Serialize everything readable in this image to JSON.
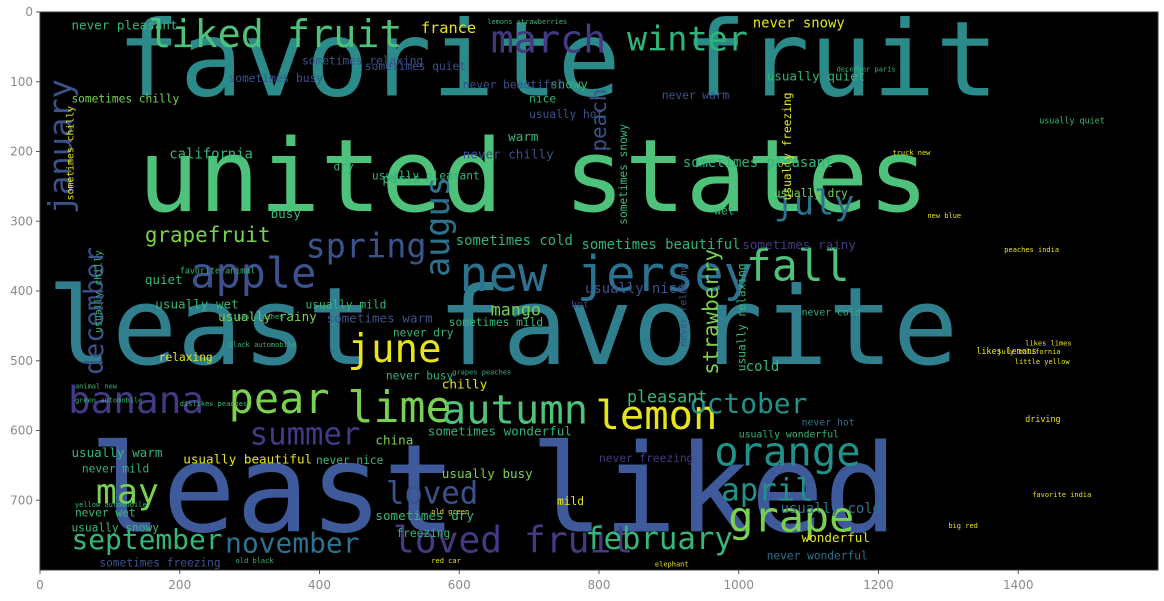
{
  "chart_data": {
    "type": "wordcloud",
    "title": "",
    "xlabel": "",
    "ylabel": "",
    "xlim": [
      0,
      1600
    ],
    "ylim": [
      800,
      0
    ],
    "x_ticks": [
      "0",
      "200",
      "400",
      "600",
      "800",
      "1000",
      "1200",
      "1400"
    ],
    "y_ticks": [
      "0",
      "100",
      "200",
      "300",
      "400",
      "500",
      "600",
      "700"
    ],
    "grid": false,
    "background": "#000000",
    "words": [
      {
        "text": "favorite fruit",
        "x": 110,
        "y": 120,
        "size": 150,
        "color": "#2b8a8a"
      },
      {
        "text": "united states",
        "x": 140,
        "y": 285,
        "size": 145,
        "color": "#4ec27a"
      },
      {
        "text": "least favorite",
        "x": 10,
        "y": 505,
        "size": 155,
        "color": "#2f7f8e"
      },
      {
        "text": "least liked",
        "x": 70,
        "y": 745,
        "size": 175,
        "color": "#3f5a9a"
      },
      {
        "text": "liked fruit",
        "x": 155,
        "y": 50,
        "size": 55,
        "color": "#4ec27a"
      },
      {
        "text": "march",
        "x": 645,
        "y": 58,
        "size": 55,
        "color": "#443983"
      },
      {
        "text": "winter",
        "x": 840,
        "y": 55,
        "size": 48,
        "color": "#2fb37c"
      },
      {
        "text": "january",
        "x": 45,
        "y": 290,
        "size": 46,
        "color": "#3b528b",
        "rotate": -90
      },
      {
        "text": "december",
        "x": 90,
        "y": 520,
        "size": 38,
        "color": "#3b528b",
        "rotate": -90
      },
      {
        "text": "apple",
        "x": 215,
        "y": 395,
        "size": 60,
        "color": "#3b528b"
      },
      {
        "text": "spring",
        "x": 380,
        "y": 352,
        "size": 48,
        "color": "#3b528b"
      },
      {
        "text": "augus",
        "x": 585,
        "y": 380,
        "size": 48,
        "color": "#2c728e",
        "rotate": -90
      },
      {
        "text": "new jersey",
        "x": 600,
        "y": 400,
        "size": 70,
        "color": "#2c728e"
      },
      {
        "text": "july",
        "x": 1050,
        "y": 290,
        "size": 48,
        "color": "#2c728e"
      },
      {
        "text": "fall",
        "x": 1010,
        "y": 385,
        "size": 62,
        "color": "#4ec27a"
      },
      {
        "text": "grapefruit",
        "x": 150,
        "y": 330,
        "size": 30,
        "color": "#7ad151"
      },
      {
        "text": "june",
        "x": 440,
        "y": 502,
        "size": 56,
        "color": "#e7e419"
      },
      {
        "text": "banana",
        "x": 40,
        "y": 575,
        "size": 54,
        "color": "#443983"
      },
      {
        "text": "pear",
        "x": 270,
        "y": 575,
        "size": 60,
        "color": "#7ad151"
      },
      {
        "text": "lime",
        "x": 440,
        "y": 588,
        "size": 62,
        "color": "#7ad151"
      },
      {
        "text": "autumn",
        "x": 575,
        "y": 590,
        "size": 58,
        "color": "#4ec27a"
      },
      {
        "text": "lemon",
        "x": 795,
        "y": 598,
        "size": 58,
        "color": "#e7e419"
      },
      {
        "text": "summer",
        "x": 300,
        "y": 620,
        "size": 44,
        "color": "#443983"
      },
      {
        "text": "october",
        "x": 930,
        "y": 575,
        "size": 40,
        "color": "#21918c"
      },
      {
        "text": "orange",
        "x": 965,
        "y": 650,
        "size": 58,
        "color": "#21918c"
      },
      {
        "text": "grape",
        "x": 985,
        "y": 745,
        "size": 60,
        "color": "#7ad151"
      },
      {
        "text": "april",
        "x": 975,
        "y": 700,
        "size": 44,
        "color": "#21918c"
      },
      {
        "text": "may",
        "x": 80,
        "y": 705,
        "size": 50,
        "color": "#7ad151"
      },
      {
        "text": "loved",
        "x": 495,
        "y": 705,
        "size": 44,
        "color": "#3b528b"
      },
      {
        "text": "loved fruit",
        "x": 505,
        "y": 775,
        "size": 52,
        "color": "#443983"
      },
      {
        "text": "february",
        "x": 780,
        "y": 770,
        "size": 44,
        "color": "#35b779"
      },
      {
        "text": "september",
        "x": 45,
        "y": 770,
        "size": 40,
        "color": "#35b779"
      },
      {
        "text": "november",
        "x": 265,
        "y": 775,
        "size": 40,
        "color": "#2c728e"
      },
      {
        "text": "strawberry",
        "x": 970,
        "y": 520,
        "size": 30,
        "color": "#7ad151",
        "rotate": -90
      },
      {
        "text": "peach",
        "x": 810,
        "y": 200,
        "size": 30,
        "color": "#3b528b",
        "rotate": -90
      },
      {
        "text": "mango",
        "x": 645,
        "y": 435,
        "size": 24,
        "color": "#7ad151"
      },
      {
        "text": "france",
        "x": 545,
        "y": 30,
        "size": 22,
        "color": "#e7e419"
      },
      {
        "text": "never snowy",
        "x": 1020,
        "y": 22,
        "size": 20,
        "color": "#e7e419"
      },
      {
        "text": "never pleasant",
        "x": 45,
        "y": 25,
        "size": 18,
        "color": "#35b779"
      },
      {
        "text": "usually quiet",
        "x": 1040,
        "y": 98,
        "size": 18,
        "color": "#2fb37c"
      },
      {
        "text": "sometimes pleasant",
        "x": 920,
        "y": 222,
        "size": 20,
        "color": "#2fb37c"
      },
      {
        "text": "sometimes cold",
        "x": 595,
        "y": 334,
        "size": 20,
        "color": "#2fb37c"
      },
      {
        "text": "sometimes beautiful",
        "x": 775,
        "y": 340,
        "size": 20,
        "color": "#2fb37c"
      },
      {
        "text": "usually nice",
        "x": 780,
        "y": 403,
        "size": 20,
        "color": "#3b528b"
      },
      {
        "text": "usually rainy",
        "x": 255,
        "y": 443,
        "size": 18,
        "color": "#7ad151"
      },
      {
        "text": "usually wet",
        "x": 165,
        "y": 425,
        "size": 18,
        "color": "#35b779"
      },
      {
        "text": "sometimes warm",
        "x": 410,
        "y": 445,
        "size": 18,
        "color": "#3b528b"
      },
      {
        "text": "sometimes wonderful",
        "x": 555,
        "y": 607,
        "size": 18,
        "color": "#2fb37c"
      },
      {
        "text": "usually beautiful",
        "x": 205,
        "y": 647,
        "size": 18,
        "color": "#e7e419"
      },
      {
        "text": "sometimes rainy",
        "x": 1005,
        "y": 340,
        "size": 18,
        "color": "#443983"
      },
      {
        "text": "usually warm",
        "x": 45,
        "y": 638,
        "size": 18,
        "color": "#35b779"
      },
      {
        "text": "sometimes dry",
        "x": 480,
        "y": 728,
        "size": 18,
        "color": "#35b779"
      },
      {
        "text": "usually busy",
        "x": 575,
        "y": 668,
        "size": 18,
        "color": "#7ad151"
      },
      {
        "text": "pleasant",
        "x": 840,
        "y": 560,
        "size": 24,
        "color": "#35b779"
      },
      {
        "text": "wonderful",
        "x": 1090,
        "y": 760,
        "size": 18,
        "color": "#e7e419"
      },
      {
        "text": "usually cold",
        "x": 1060,
        "y": 718,
        "size": 20,
        "color": "#2c728e"
      },
      {
        "text": "chilly",
        "x": 575,
        "y": 540,
        "size": 18,
        "color": "#e7e419"
      },
      {
        "text": "mild",
        "x": 740,
        "y": 707,
        "size": 16,
        "color": "#e7e419"
      },
      {
        "text": "china",
        "x": 480,
        "y": 620,
        "size": 18,
        "color": "#7ad151"
      },
      {
        "text": "california",
        "x": 185,
        "y": 210,
        "size": 20,
        "color": "#35b779"
      },
      {
        "text": "paris",
        "x": 490,
        "y": 245,
        "size": 18,
        "color": "#35b779"
      },
      {
        "text": "busy",
        "x": 330,
        "y": 295,
        "size": 18,
        "color": "#35b779"
      },
      {
        "text": "quiet",
        "x": 150,
        "y": 390,
        "size": 18,
        "color": "#35b779"
      },
      {
        "text": "snowy",
        "x": 730,
        "y": 110,
        "size": 18,
        "color": "#35b779"
      },
      {
        "text": "warm",
        "x": 670,
        "y": 185,
        "size": 18,
        "color": "#35b779"
      },
      {
        "text": "nice",
        "x": 700,
        "y": 130,
        "size": 16,
        "color": "#35b779"
      },
      {
        "text": "never chilly",
        "x": 605,
        "y": 210,
        "size": 18,
        "color": "#3b528b"
      },
      {
        "text": "usually pleasant",
        "x": 475,
        "y": 240,
        "size": 16,
        "color": "#2fb37c"
      },
      {
        "text": "never beautiful",
        "x": 605,
        "y": 110,
        "size": 16,
        "color": "#3b528b"
      },
      {
        "text": "sometimes relaxing",
        "x": 375,
        "y": 75,
        "size": 16,
        "color": "#3b528b"
      },
      {
        "text": "sometimes quiet",
        "x": 465,
        "y": 83,
        "size": 16,
        "color": "#3b528b"
      },
      {
        "text": "sometimes busy",
        "x": 270,
        "y": 100,
        "size": 16,
        "color": "#3b528b"
      },
      {
        "text": "sometimes chilly",
        "x": 45,
        "y": 130,
        "size": 16,
        "color": "#7ad151"
      },
      {
        "text": "usually hot",
        "x": 700,
        "y": 152,
        "size": 16,
        "color": "#3b528b"
      },
      {
        "text": "usually dry",
        "x": 1050,
        "y": 265,
        "size": 16,
        "color": "#7ad151"
      },
      {
        "text": "never dry",
        "x": 505,
        "y": 465,
        "size": 16,
        "color": "#35b779"
      },
      {
        "text": "never busy",
        "x": 495,
        "y": 527,
        "size": 16,
        "color": "#2fb37c"
      },
      {
        "text": "sometimes mild",
        "x": 585,
        "y": 450,
        "size": 16,
        "color": "#35b779"
      },
      {
        "text": "never nice",
        "x": 395,
        "y": 648,
        "size": 16,
        "color": "#35b779"
      },
      {
        "text": "never mild",
        "x": 60,
        "y": 660,
        "size": 16,
        "color": "#2fb37c"
      },
      {
        "text": "never wet",
        "x": 50,
        "y": 723,
        "size": 16,
        "color": "#35b779"
      },
      {
        "text": "usually snowy",
        "x": 45,
        "y": 745,
        "size": 16,
        "color": "#35b779"
      },
      {
        "text": "never warm",
        "x": 890,
        "y": 125,
        "size": 16,
        "color": "#3b528b"
      },
      {
        "text": "never freezing",
        "x": 800,
        "y": 645,
        "size": 16,
        "color": "#443983"
      },
      {
        "text": "never wonderful",
        "x": 1040,
        "y": 785,
        "size": 16,
        "color": "#2c728e"
      },
      {
        "text": "never hot",
        "x": 1090,
        "y": 593,
        "size": 14,
        "color": "#2c728e"
      },
      {
        "text": "never cold",
        "x": 1090,
        "y": 435,
        "size": 14,
        "color": "#2fb37c"
      },
      {
        "text": "usually wonderful",
        "x": 1000,
        "y": 610,
        "size": 14,
        "color": "#35b779"
      },
      {
        "text": "relaxing",
        "x": 170,
        "y": 500,
        "size": 16,
        "color": "#e7e419"
      },
      {
        "text": "freezing",
        "x": 510,
        "y": 753,
        "size": 16,
        "color": "#35b779"
      },
      {
        "text": "cold",
        "x": 1010,
        "y": 515,
        "size": 20,
        "color": "#35b779"
      },
      {
        "text": "dry",
        "x": 420,
        "y": 227,
        "size": 16,
        "color": "#35b779"
      },
      {
        "text": "wet",
        "x": 965,
        "y": 290,
        "size": 16,
        "color": "#35b779"
      },
      {
        "text": "hot",
        "x": 760,
        "y": 424,
        "size": 14,
        "color": "#443983"
      },
      {
        "text": "sometimes freezing",
        "x": 85,
        "y": 795,
        "size": 16,
        "color": "#3b528b"
      },
      {
        "text": "sometimes snowy",
        "x": 840,
        "y": 305,
        "size": 16,
        "color": "#35b779",
        "rotate": -90
      },
      {
        "text": "usually freezing",
        "x": 1075,
        "y": 270,
        "size": 16,
        "color": "#e7e419",
        "rotate": -90
      },
      {
        "text": "usually relaxing",
        "x": 1010,
        "y": 515,
        "size": 16,
        "color": "#35b779",
        "rotate": -90
      },
      {
        "text": "never relaxing",
        "x": 925,
        "y": 480,
        "size": 14,
        "color": "#3b528b",
        "rotate": -90
      },
      {
        "text": "usually chilly",
        "x": 88,
        "y": 460,
        "size": 14,
        "color": "#35b779",
        "rotate": -90
      },
      {
        "text": "sometimes chilly",
        "x": 48,
        "y": 270,
        "size": 14,
        "color": "#e7e419",
        "rotate": -90
      },
      {
        "text": "usually mild",
        "x": 380,
        "y": 425,
        "size": 16,
        "color": "#35b779"
      },
      {
        "text": "favorite animal",
        "x": 200,
        "y": 375,
        "size": 12,
        "color": "#35b779"
      },
      {
        "text": "truck new",
        "x": 1220,
        "y": 205,
        "size": 10,
        "color": "#e7e419"
      },
      {
        "text": "animal new",
        "x": 50,
        "y": 540,
        "size": 10,
        "color": "#35b779"
      },
      {
        "text": "big red",
        "x": 1300,
        "y": 740,
        "size": 10,
        "color": "#e7e419"
      },
      {
        "text": "likes lemons",
        "x": 1340,
        "y": 490,
        "size": 12,
        "color": "#e7e419"
      },
      {
        "text": "usually quiet",
        "x": 1430,
        "y": 160,
        "size": 12,
        "color": "#35b779"
      },
      {
        "text": "old green",
        "x": 560,
        "y": 720,
        "size": 10,
        "color": "#e7e419"
      },
      {
        "text": "july california",
        "x": 1370,
        "y": 490,
        "size": 10,
        "color": "#e7e419"
      },
      {
        "text": "black automobile",
        "x": 270,
        "y": 480,
        "size": 10,
        "color": "#35b779"
      },
      {
        "text": "green automobile",
        "x": 50,
        "y": 560,
        "size": 10,
        "color": "#35b779"
      },
      {
        "text": "grapes peaches",
        "x": 590,
        "y": 520,
        "size": 10,
        "color": "#2fb37c"
      },
      {
        "text": "likes peaches",
        "x": 270,
        "y": 440,
        "size": 10,
        "color": "#35b779"
      },
      {
        "text": "dislikes peaches",
        "x": 200,
        "y": 565,
        "size": 10,
        "color": "#35b779"
      },
      {
        "text": "lemons strawberries",
        "x": 640,
        "y": 17,
        "size": 10,
        "color": "#35b779"
      },
      {
        "text": "peaches india",
        "x": 1380,
        "y": 344,
        "size": 10,
        "color": "#e7e419"
      },
      {
        "text": "december paris",
        "x": 1140,
        "y": 85,
        "size": 10,
        "color": "#35b779"
      },
      {
        "text": "little yellow",
        "x": 1395,
        "y": 505,
        "size": 10,
        "color": "#e7e419"
      },
      {
        "text": "driving",
        "x": 1410,
        "y": 588,
        "size": 12,
        "color": "#e7e419"
      },
      {
        "text": "favorite india",
        "x": 1420,
        "y": 695,
        "size": 10,
        "color": "#e7e419"
      },
      {
        "text": "likes limes",
        "x": 1410,
        "y": 478,
        "size": 10,
        "color": "#e7e419"
      },
      {
        "text": "new blue",
        "x": 1270,
        "y": 295,
        "size": 10,
        "color": "#e7e419"
      },
      {
        "text": "yellow automobile",
        "x": 50,
        "y": 710,
        "size": 10,
        "color": "#35b779"
      },
      {
        "text": "old black",
        "x": 280,
        "y": 790,
        "size": 10,
        "color": "#35b779"
      },
      {
        "text": "red car",
        "x": 560,
        "y": 790,
        "size": 10,
        "color": "#e7e419"
      },
      {
        "text": "elephant",
        "x": 880,
        "y": 795,
        "size": 10,
        "color": "#e7e419"
      }
    ]
  }
}
